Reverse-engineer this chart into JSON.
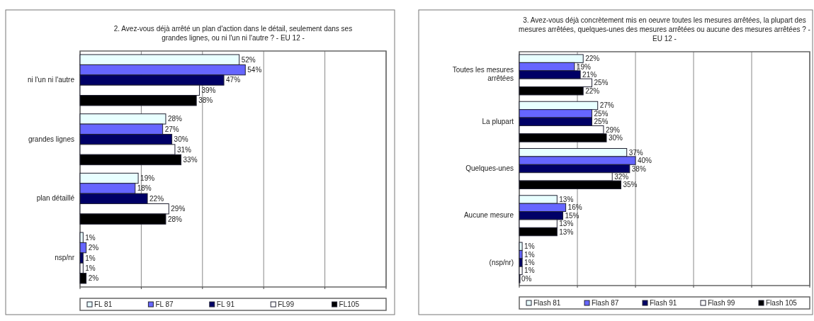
{
  "chart_data": [
    {
      "type": "bar",
      "orientation": "horizontal",
      "title": "2. Avez-vous déjà arrêté un plan d'action dans le détail, seulement dans ses grandes lignes, ou ni l'un ni l'autre ?  - EU 12 -",
      "categories": [
        "ni l'un ni l'autre",
        "grandes lignes",
        "plan détaillé",
        "nsp/nr"
      ],
      "xlim": [
        0,
        100
      ],
      "xticks": [
        {
          "value": 0,
          "label": null
        },
        {
          "value": 20,
          "label": null
        },
        {
          "value": 40,
          "label": null
        },
        {
          "value": 60,
          "label": null
        },
        {
          "value": 80,
          "label": null
        },
        {
          "value": 100,
          "label": null
        }
      ],
      "tick_labels": "y",
      "grid": "x",
      "legend": "bottom",
      "series": [
        {
          "name": "FL 81",
          "color": "#e8ffff",
          "values": [
            52,
            28,
            19,
            1
          ],
          "value_labels": [
            "52%",
            "28%",
            "19%",
            "1%"
          ]
        },
        {
          "name": "FL 87",
          "color": "#6666ff",
          "values": [
            54,
            27,
            18,
            2
          ],
          "value_labels": [
            "54%",
            "27%",
            "18%",
            "2%"
          ]
        },
        {
          "name": "FL 91",
          "color": "#000066",
          "values": [
            47,
            30,
            22,
            1
          ],
          "value_labels": [
            "47%",
            "30%",
            "22%",
            "1%"
          ]
        },
        {
          "name": "FL99",
          "color": "#ffffff",
          "values": [
            39,
            31,
            29,
            1
          ],
          "value_labels": [
            "39%",
            "31%",
            "29%",
            "1%"
          ]
        },
        {
          "name": "FL105",
          "color": "#000000",
          "values": [
            38,
            33,
            28,
            2
          ],
          "value_labels": [
            "38%",
            "33%",
            "28%",
            "2%"
          ]
        }
      ]
    },
    {
      "type": "bar",
      "orientation": "horizontal",
      "title": "3. Avez-vous déjà concrètement mis en oeuvre toutes les mesures arrêtées, la plupart des mesures arrêtées, quelques-unes des mesures arrêtées ou aucune des mesures arrêtées ?  - EU 12 -",
      "categories": [
        "Toutes les mesures arrêtées",
        "La plupart",
        "Quelques-unes",
        "Aucune mesure",
        "(nsp/nr)"
      ],
      "xlim": [
        0,
        100
      ],
      "xticks": [
        {
          "value": 0,
          "label": null
        },
        {
          "value": 20,
          "label": null
        },
        {
          "value": 40,
          "label": null
        },
        {
          "value": 60,
          "label": null
        },
        {
          "value": 80,
          "label": null
        },
        {
          "value": 100,
          "label": null
        }
      ],
      "tick_labels": "y",
      "grid": "x",
      "legend": "bottom",
      "series": [
        {
          "name": "Flash 81",
          "color": "#e8ffff",
          "values": [
            22,
            27,
            37,
            13,
            1
          ],
          "value_labels": [
            "22%",
            "27%",
            "37%",
            "13%",
            "1%"
          ]
        },
        {
          "name": "Flash 87",
          "color": "#6666ff",
          "values": [
            19,
            25,
            40,
            16,
            1
          ],
          "value_labels": [
            "19%",
            "25%",
            "40%",
            "16%",
            "1%"
          ]
        },
        {
          "name": "Flash 91",
          "color": "#000066",
          "values": [
            21,
            25,
            38,
            15,
            1
          ],
          "value_labels": [
            "21%",
            "25%",
            "38%",
            "15%",
            "1%"
          ]
        },
        {
          "name": "Flash 99",
          "color": "#ffffff",
          "values": [
            25,
            29,
            32,
            13,
            1
          ],
          "value_labels": [
            "25%",
            "29%",
            "32%",
            "13%",
            "1%"
          ]
        },
        {
          "name": "Flash 105",
          "color": "#000000",
          "values": [
            22,
            30,
            35,
            13,
            0
          ],
          "value_labels": [
            "22%",
            "30%",
            "35%",
            "13%",
            "0%"
          ]
        }
      ]
    }
  ]
}
